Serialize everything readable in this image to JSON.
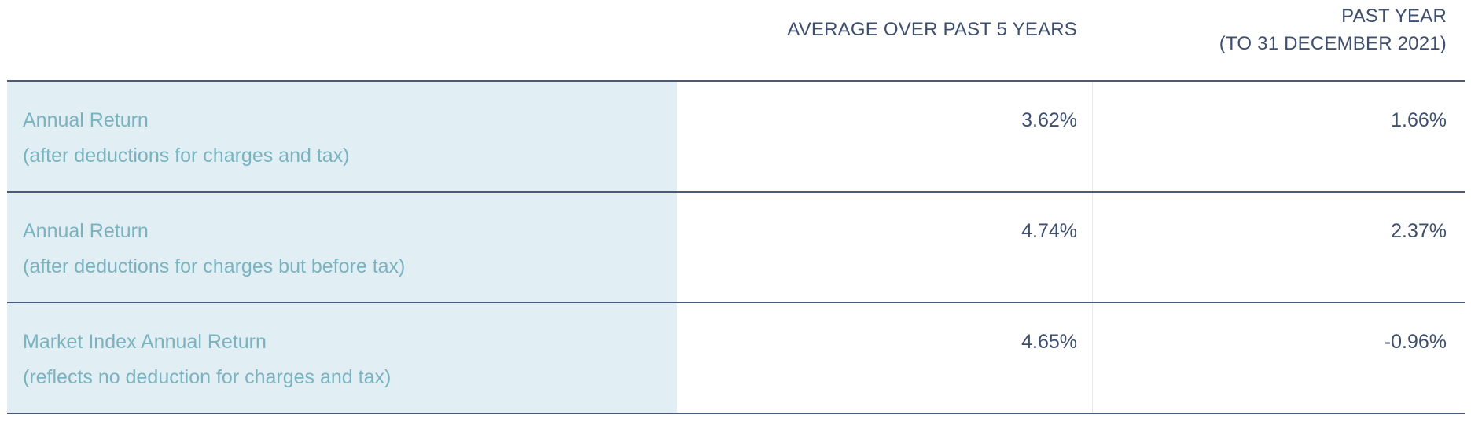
{
  "columns": {
    "average": "AVERAGE OVER PAST 5 YEARS",
    "past_year_line1": "PAST YEAR",
    "past_year_line2": "(TO 31 DECEMBER 2021)"
  },
  "rows": [
    {
      "label": "Annual Return",
      "sublabel": "(after deductions for charges and tax)",
      "average": "3.62%",
      "past_year": "1.66%"
    },
    {
      "label": "Annual Return",
      "sublabel": "(after deductions for charges but before tax)",
      "average": "4.74%",
      "past_year": "2.37%"
    },
    {
      "label": "Market Index Annual Return",
      "sublabel": "(reflects no deduction for charges and tax)",
      "average": "4.65%",
      "past_year": "-0.96%"
    }
  ],
  "colors": {
    "label_background": "#e1eef3",
    "label_text": "#7ab3bf",
    "value_text": "#3f4f6e",
    "rule": "#4a5a78"
  }
}
